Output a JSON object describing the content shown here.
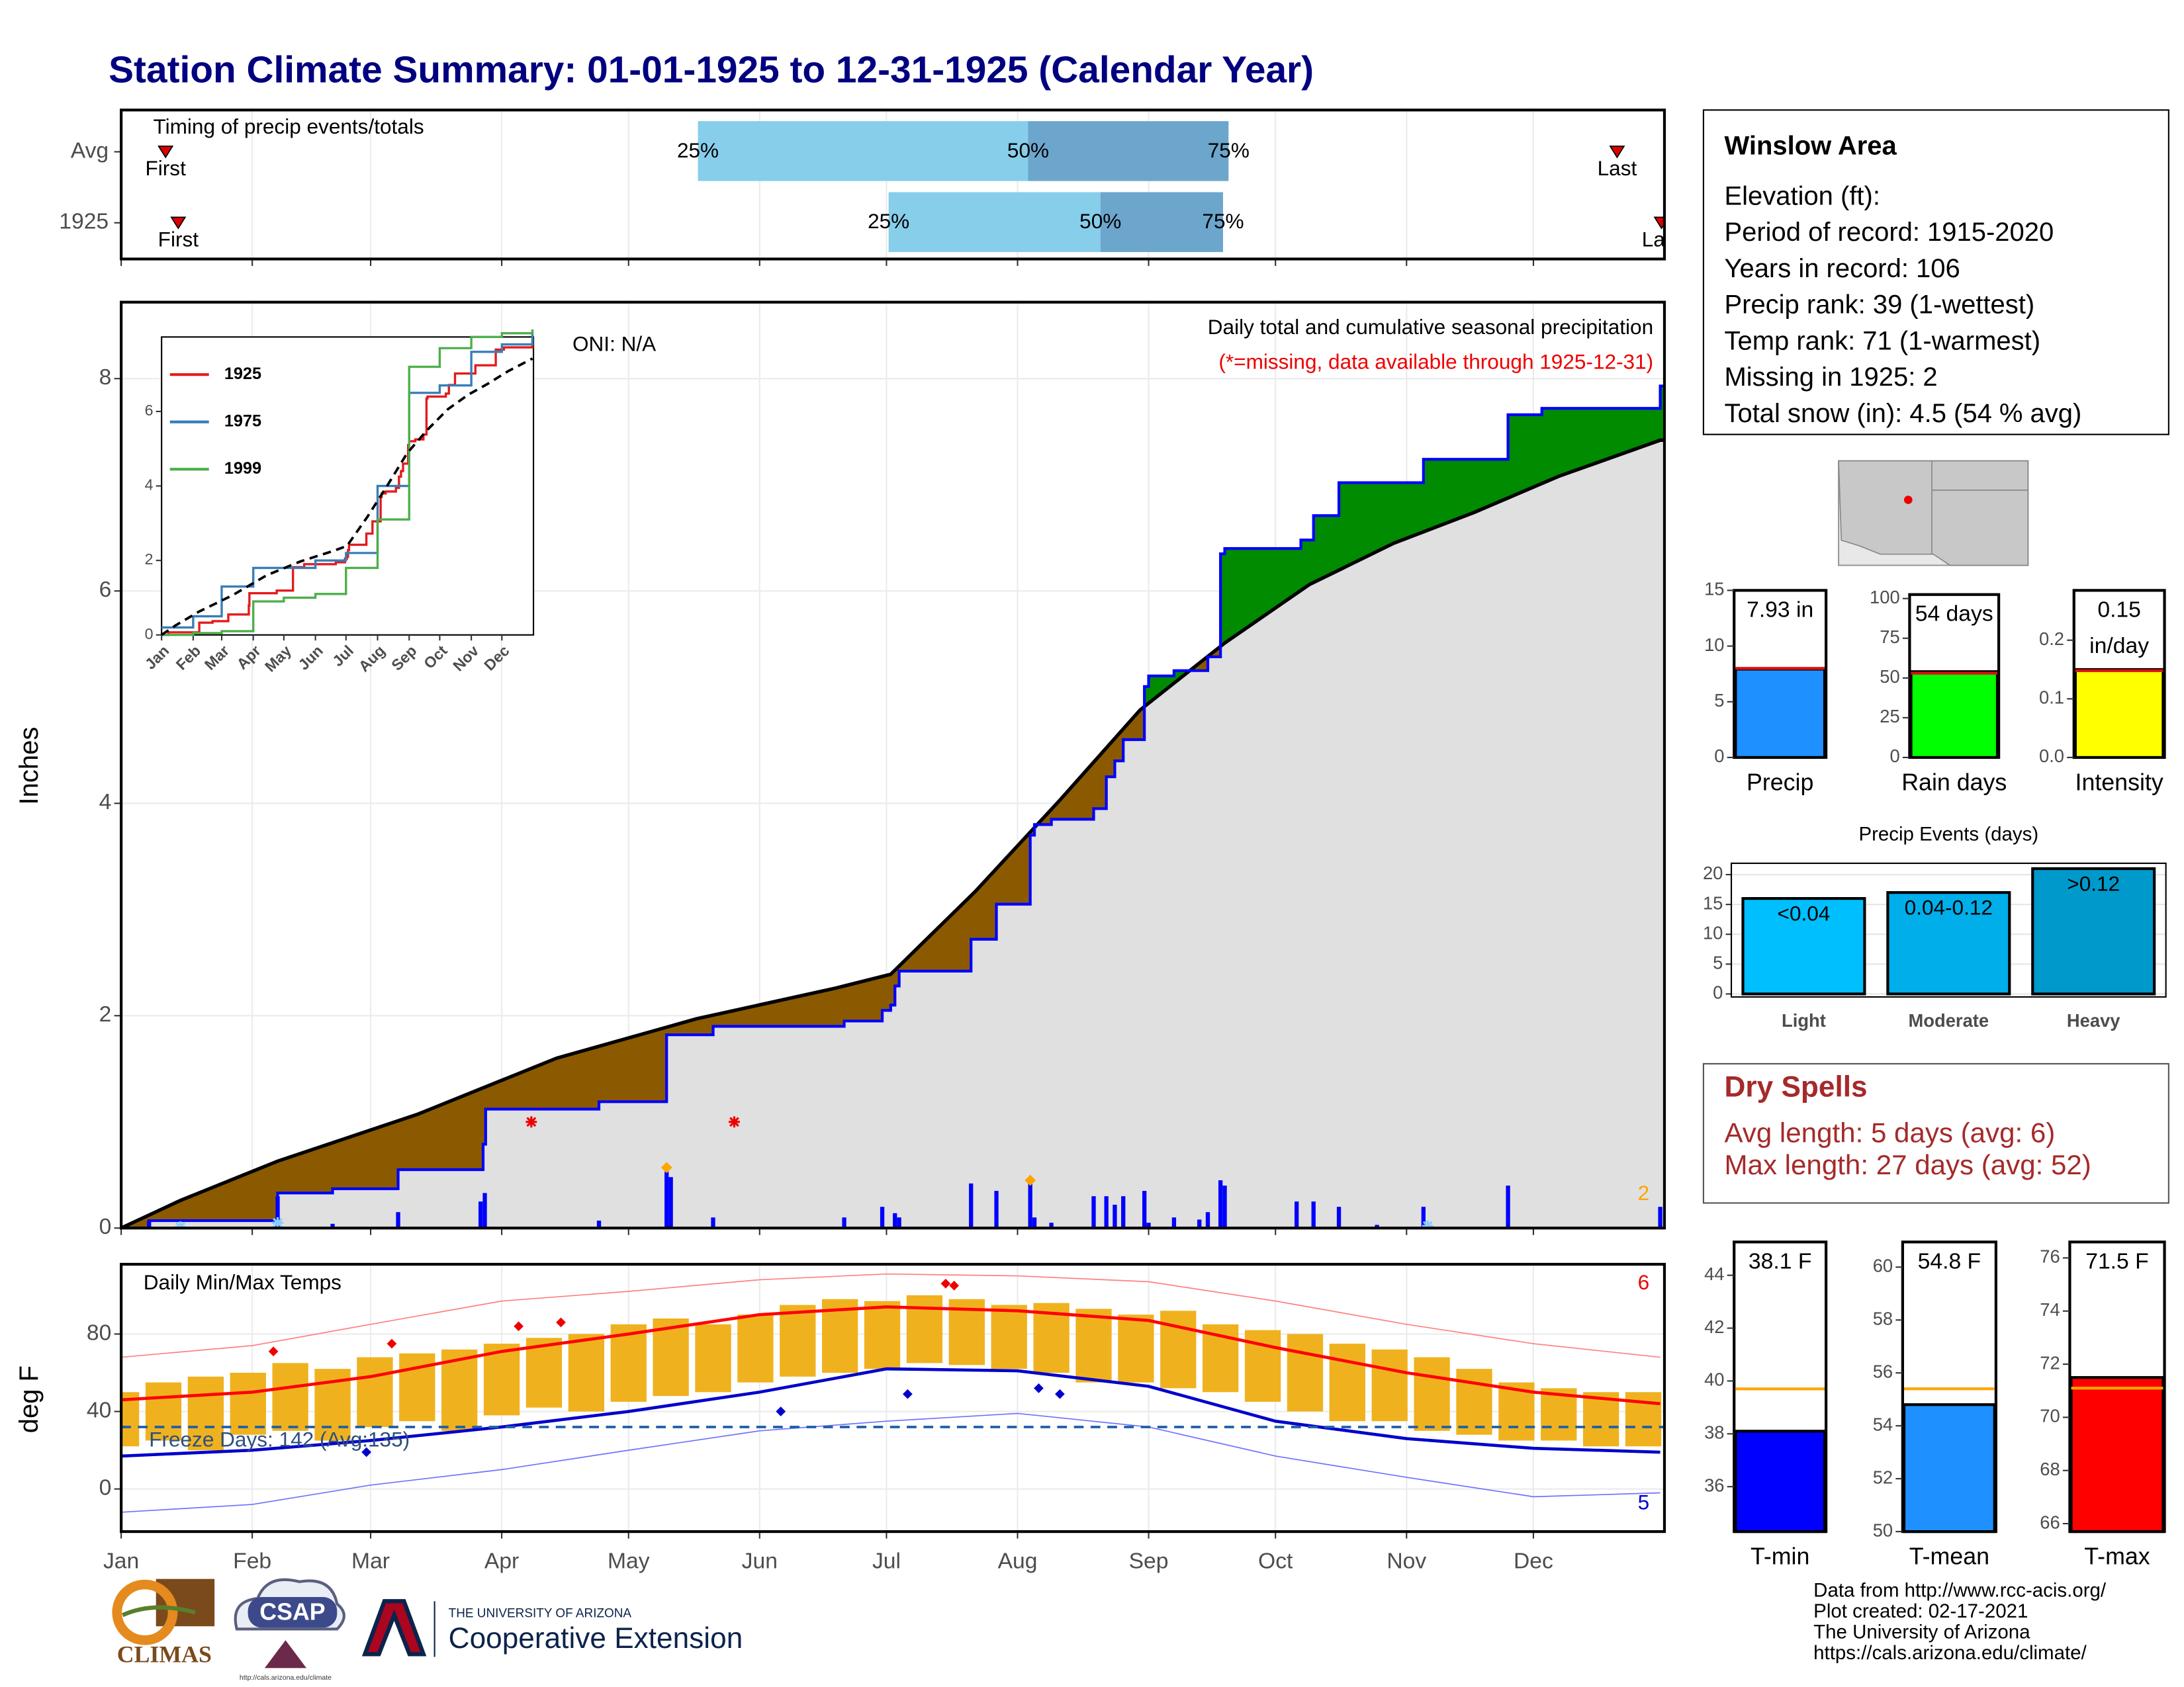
{
  "header": {
    "title": "Station Climate Summary: 01-01-1925 to 12-31-1925 (Calendar Year)"
  },
  "chart_data": [
    {
      "type": "timing",
      "title": "Timing of precip events/totals",
      "xlim": [
        0,
        365
      ],
      "point_labels": [
        "First",
        "25%",
        "50%",
        "75%",
        "Last"
      ],
      "colors": [
        "#87ceeb",
        "#6ca6cd"
      ],
      "marker_color": "#dd0000",
      "series": [
        {
          "name": "Avg",
          "values": [
            10.5,
            136.4,
            214.5,
            261.9,
            353.8
          ]
        },
        {
          "name": "1925",
          "values": [
            13.5,
            181.5,
            231.6,
            260.6,
            364.3
          ]
        }
      ]
    },
    {
      "type": "area",
      "title": "Daily total and cumulative seasonal precipitation",
      "subtitle": "(*=missing, data available through 1925-12-31)",
      "annotation": "ONI: N/A",
      "ylabel": "Inches",
      "xlim": [
        0,
        365
      ],
      "ylim": [
        0,
        8.72
      ],
      "yticks": [
        0,
        2,
        4,
        6,
        8
      ],
      "grid": true,
      "colors": {
        "below": "#8b5a00",
        "above": "#008b00",
        "base": "#e0e0e0"
      },
      "series": [
        {
          "name": "1925",
          "color": "#0000ff",
          "x": [
            0,
            6.6,
            37,
            50,
            65.5,
            85.6,
            86.2,
            113,
            129,
            140,
            171,
            180,
            182,
            183,
            184,
            201,
            207,
            215,
            216,
            220,
            230,
            233,
            235,
            237,
            242,
            243,
            249,
            257,
            260,
            261,
            279,
            282,
            288,
            308,
            328,
            336,
            364
          ],
          "values": [
            0,
            0.07,
            0.33,
            0.37,
            0.55,
            0.79,
            1.12,
            1.19,
            1.82,
            1.9,
            1.95,
            2.05,
            2.1,
            2.28,
            2.42,
            2.72,
            3.05,
            3.7,
            3.8,
            3.85,
            3.95,
            4.25,
            4.4,
            4.6,
            5.1,
            5.2,
            5.25,
            5.38,
            6.35,
            6.4,
            6.48,
            6.71,
            7.02,
            7.24,
            7.66,
            7.72,
            7.93
          ]
        },
        {
          "color": "#000000",
          "x": [
            0,
            14,
            37,
            70,
            103,
            136,
            169,
            182,
            202,
            222,
            241,
            261,
            281,
            301,
            320,
            340,
            364
          ],
          "values": [
            0,
            0.26,
            0.63,
            1.07,
            1.6,
            1.97,
            2.26,
            2.39,
            3.17,
            4.03,
            4.88,
            5.51,
            6.06,
            6.45,
            6.74,
            7.08,
            7.42
          ]
        }
      ],
      "daily": {
        "color": "#0000ff",
        "x": [
          6.6,
          37,
          50,
          65.5,
          85,
          86,
          113,
          129,
          130,
          140,
          171,
          180,
          183,
          184,
          201,
          207,
          215,
          216,
          220,
          230,
          233,
          235,
          237,
          242,
          243,
          249,
          255,
          257,
          260,
          261,
          278,
          282,
          288,
          297,
          308,
          328,
          364
        ],
        "values": [
          0.07,
          0.3,
          0.04,
          0.15,
          0.25,
          0.33,
          0.07,
          0.53,
          0.48,
          0.1,
          0.1,
          0.2,
          0.14,
          0.1,
          0.42,
          0.35,
          0.42,
          0.1,
          0.05,
          0.3,
          0.3,
          0.22,
          0.3,
          0.35,
          0.05,
          0.1,
          0.08,
          0.15,
          0.45,
          0.4,
          0.25,
          0.25,
          0.2,
          0.03,
          0.2,
          0.4,
          0.2
        ]
      },
      "missing": {
        "color": "#ee0000",
        "x": [
          97,
          145
        ],
        "values": [
          1.0,
          1.0
        ]
      },
      "records": {
        "color": "#ffa500",
        "x": [
          129,
          215
        ],
        "values": [
          0.57,
          0.45
        ],
        "count": 2
      },
      "snow": {
        "color": "#87cefa",
        "x": [
          14,
          37,
          309
        ],
        "values": [
          0.01,
          0.05,
          0.02
        ]
      },
      "inset": {
        "ylim": [
          0,
          8
        ],
        "yticks": [
          0,
          2,
          4,
          6
        ],
        "series": [
          {
            "name": "1925",
            "color": "#e41a1c"
          },
          {
            "name": "1975",
            "color": "#377eb8",
            "x": [
              0,
              31,
              59,
              90,
              120,
              151,
              181,
              212,
              243,
              273,
              304,
              334,
              364
            ],
            "values": [
              0.2,
              0.5,
              1.3,
              1.8,
              1.8,
              2.0,
              2.2,
              4.0,
              6.5,
              6.7,
              7.6,
              7.8,
              8.2
            ]
          },
          {
            "name": "1999",
            "color": "#4daf4a",
            "x": [
              0,
              31,
              59,
              90,
              120,
              151,
              181,
              212,
              243,
              273,
              304,
              334,
              364
            ],
            "values": [
              0,
              0.05,
              0.1,
              0.9,
              1.0,
              1.1,
              1.8,
              3.1,
              7.2,
              7.7,
              8.0,
              8.1,
              8.2
            ]
          }
        ]
      }
    },
    {
      "type": "range",
      "title": "Daily Min/Max Temps",
      "ylabel": "deg F",
      "xlim": [
        0,
        365
      ],
      "ylim": [
        -22,
        116
      ],
      "yticks": [
        0,
        40,
        80
      ],
      "xticks": [
        {
          "value": 0,
          "label": "Jan"
        },
        {
          "value": 31,
          "label": "Feb"
        },
        {
          "value": 59,
          "label": "Mar"
        },
        {
          "value": 90,
          "label": "Apr"
        },
        {
          "value": 120,
          "label": "May"
        },
        {
          "value": 151,
          "label": "Jun"
        },
        {
          "value": 181,
          "label": "Jul"
        },
        {
          "value": 212,
          "label": "Aug"
        },
        {
          "value": 243,
          "label": "Sep"
        },
        {
          "value": 273,
          "label": "Oct"
        },
        {
          "value": 304,
          "label": "Nov"
        },
        {
          "value": 334,
          "label": "Dec"
        }
      ],
      "bar_color": "#efb21e",
      "x": [
        0,
        10,
        20,
        30,
        40,
        50,
        60,
        70,
        80,
        90,
        100,
        110,
        120,
        130,
        140,
        150,
        160,
        170,
        180,
        190,
        200,
        210,
        220,
        230,
        240,
        250,
        260,
        270,
        280,
        290,
        300,
        310,
        320,
        330,
        340,
        350,
        360
      ],
      "high": [
        50,
        55,
        58,
        60,
        65,
        62,
        68,
        70,
        72,
        75,
        78,
        80,
        85,
        88,
        85,
        90,
        95,
        98,
        97,
        100,
        98,
        95,
        96,
        93,
        90,
        92,
        85,
        82,
        80,
        75,
        72,
        68,
        62,
        55,
        52,
        50,
        50
      ],
      "low": [
        22,
        25,
        20,
        28,
        30,
        25,
        32,
        35,
        30,
        38,
        42,
        40,
        45,
        48,
        50,
        55,
        58,
        60,
        62,
        65,
        64,
        62,
        60,
        55,
        55,
        52,
        50,
        45,
        40,
        35,
        35,
        30,
        28,
        25,
        25,
        22,
        22
      ],
      "normals_x": [
        0,
        31,
        59,
        90,
        120,
        151,
        181,
        212,
        243,
        273,
        304,
        334,
        364
      ],
      "lines": [
        {
          "color": "#ff0000",
          "width": 2.2,
          "values": [
            46,
            50,
            58,
            71,
            80,
            90,
            94,
            92,
            87,
            73,
            60,
            50,
            44
          ]
        },
        {
          "color": "#0000cc",
          "width": 2.2,
          "values": [
            17,
            20,
            25,
            32,
            40,
            50,
            62,
            61,
            53,
            35,
            26,
            21,
            19
          ]
        },
        {
          "color": "#ff8080",
          "width": 0.8,
          "values": [
            68,
            74,
            85,
            97,
            102,
            108,
            111,
            110,
            107,
            97,
            85,
            75,
            68
          ]
        },
        {
          "color": "#7070ff",
          "width": 0.8,
          "values": [
            -12,
            -8,
            2,
            10,
            20,
            30,
            35,
            39,
            32,
            17,
            6,
            -4,
            -2
          ]
        }
      ],
      "freeze": {
        "value": 32,
        "label": "Freeze Days: 142 (Avg:135)",
        "color": "#1f5fa6"
      },
      "record_highs": {
        "color": "#ee0000",
        "x": [
          36,
          64,
          94,
          104,
          195,
          197
        ],
        "values": [
          71,
          75,
          84,
          86,
          106,
          105
        ],
        "count": 6
      },
      "record_lows": {
        "color": "#0000cc",
        "x": [
          58,
          156,
          186,
          217,
          222
        ],
        "values": [
          19,
          40,
          49,
          52,
          49
        ],
        "count": 5
      }
    },
    {
      "type": "gauge",
      "label": "Precip",
      "value": 7.93,
      "value_label": "7.93 in",
      "avg": 8.0,
      "color": "#1e90ff",
      "avg_color": "#dd1111",
      "ylim": [
        0,
        15
      ],
      "yticks": [
        0,
        5,
        10,
        15
      ]
    },
    {
      "type": "gauge",
      "label": "Rain days",
      "value": 54,
      "value_label": "54 days",
      "avg": 53,
      "color": "#00ff00",
      "avg_color": "#dd1111",
      "ylim": [
        0,
        102.5
      ],
      "yticks": [
        0,
        25,
        50,
        75,
        100
      ]
    },
    {
      "type": "gauge",
      "label": "Intensity",
      "value": 0.15,
      "value_label": "0.15 in/day",
      "avg": 0.148,
      "color": "#ffff00",
      "avg_color": "#dd1111",
      "ylim": [
        0,
        0.285
      ],
      "yticks": [
        {
          "value": 0,
          "label": "0.0"
        },
        {
          "value": 0.1,
          "label": "0.1"
        },
        {
          "value": 0.2,
          "label": "0.2"
        }
      ]
    },
    {
      "type": "bar",
      "title": "Precip Events (days)",
      "categories": [
        "Light",
        "Moderate",
        "Heavy"
      ],
      "values": [
        16,
        17,
        21
      ],
      "bin_labels": [
        "<0.04",
        "0.04-0.12",
        ">0.12"
      ],
      "colors": [
        "#00bfff",
        "#00aeea",
        "#0099cc"
      ],
      "ylim": [
        -0.5,
        21.9
      ],
      "yticks": [
        0,
        5,
        10,
        15,
        20
      ],
      "grid": true
    },
    {
      "type": "gauge",
      "label": "T-min",
      "value": 38.1,
      "value_label": "38.1 F",
      "avg": 39.7,
      "color": "#0000ff",
      "avg_color": "#ffa500",
      "ylim": [
        34.3,
        45.26
      ],
      "yticks": [
        36,
        38,
        40,
        42,
        44
      ]
    },
    {
      "type": "gauge",
      "label": "T-mean",
      "value": 54.8,
      "value_label": "54.8 F",
      "avg": 55.4,
      "color": "#1e90ff",
      "avg_color": "#ffa500",
      "ylim": [
        50,
        60.95
      ],
      "yticks": [
        50,
        52,
        54,
        56,
        58,
        60
      ]
    },
    {
      "type": "gauge",
      "label": "T-max",
      "value": 71.5,
      "value_label": "71.5 F",
      "avg": 71.1,
      "color": "#ff0000",
      "avg_color": "#ffa500",
      "ylim": [
        65.7,
        76.6
      ],
      "yticks": [
        66,
        68,
        70,
        72,
        74,
        76
      ]
    }
  ],
  "info": {
    "title": "Winslow Area",
    "lines": [
      "Elevation (ft):",
      "Period of record: 1915-2020",
      "Years in record: 106",
      "Precip rank: 39 (1-wettest)",
      "Temp rank: 71 (1-warmest)",
      "Missing in 1925: 2",
      "Total snow (in): 4.5 (54 % avg)"
    ]
  },
  "dry_spells": {
    "title": "Dry Spells",
    "lines": [
      "Avg length: 5 days (avg: 6)",
      "Max length: 27 days (avg: 52)"
    ]
  },
  "footer": [
    "Data from http://www.rcc-acis.org/",
    "Plot created: 02-17-2021",
    "The University of Arizona",
    "https://cals.arizona.edu/climate/"
  ],
  "logos": {
    "climas": "CLIMAS",
    "csap": "CSAP",
    "csap_url": "http://cals.arizona.edu/climate",
    "ua_small": "THE UNIVERSITY OF ARIZONA",
    "ua_big": "Cooperative Extension"
  }
}
